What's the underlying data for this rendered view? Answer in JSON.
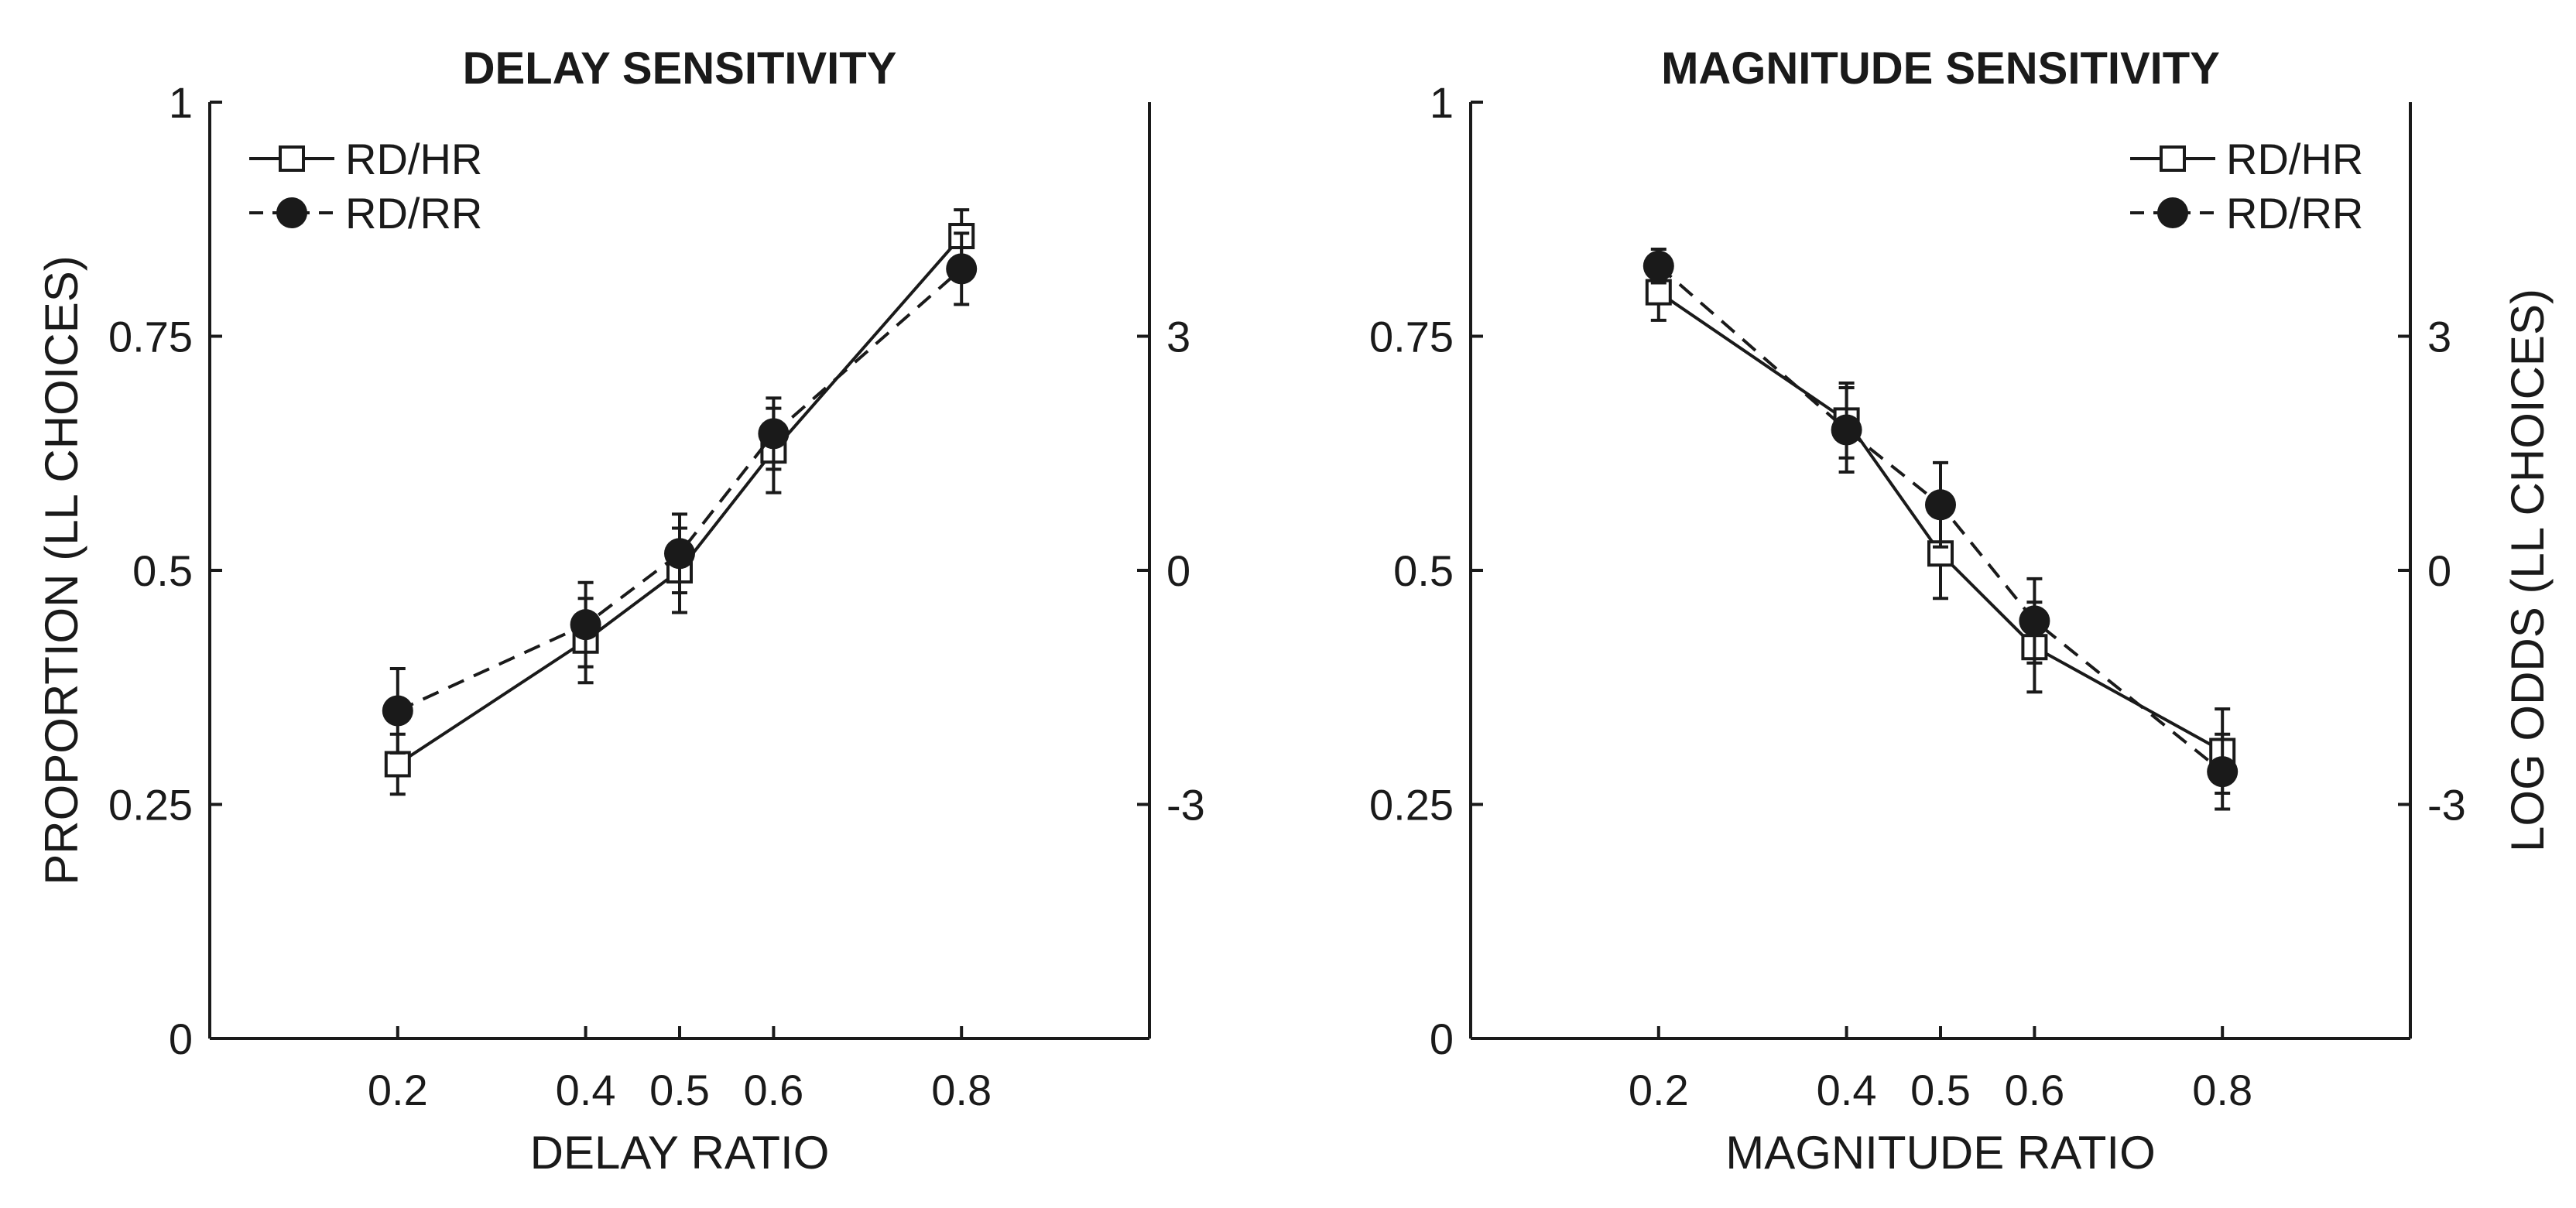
{
  "chart_data": [
    {
      "type": "line",
      "title": "DELAY SENSITIVITY",
      "xlabel": "DELAY RATIO",
      "ylabel": "PROPORTION (LL CHOICES)",
      "y2label": "",
      "xlim": [
        0,
        1
      ],
      "ylim": [
        0,
        1
      ],
      "y2lim": [
        -6,
        6
      ],
      "xticks": [
        0.2,
        0.4,
        0.5,
        0.6,
        0.8
      ],
      "xtick_labels": [
        "0.2",
        "0.4",
        "0.5",
        "0.6",
        "0.8"
      ],
      "yticks": [
        0,
        0.25,
        0.5,
        0.75,
        1
      ],
      "ytick_labels": [
        "0",
        "0.25",
        "0.5",
        "0.75",
        "1"
      ],
      "y2ticks": [
        -3,
        0,
        3
      ],
      "y2tick_labels": [
        "-3",
        "0",
        "3"
      ],
      "legend_position": "top-left",
      "series": [
        {
          "name": "RD/HR",
          "marker": "open-square",
          "line": "solid",
          "x": [
            0.2,
            0.4,
            0.5,
            0.6,
            0.8
          ],
          "values": [
            0.293,
            0.425,
            0.5,
            0.628,
            0.857
          ],
          "error": [
            0.032,
            0.045,
            0.045,
            0.045,
            0.028
          ]
        },
        {
          "name": "RD/RR",
          "marker": "filled-circle",
          "line": "dashed",
          "x": [
            0.2,
            0.4,
            0.5,
            0.6,
            0.8
          ],
          "values": [
            0.35,
            0.442,
            0.518,
            0.646,
            0.822
          ],
          "error": [
            0.045,
            0.045,
            0.042,
            0.038,
            0.038
          ]
        }
      ]
    },
    {
      "type": "line",
      "title": "MAGNITUDE SENSITIVITY",
      "xlabel": "MAGNITUDE RATIO",
      "ylabel": "",
      "y2label": "LOG ODDS (LL CHOICES)",
      "xlim": [
        0,
        1
      ],
      "ylim": [
        0,
        1
      ],
      "y2lim": [
        -6,
        6
      ],
      "xticks": [
        0.2,
        0.4,
        0.5,
        0.6,
        0.8
      ],
      "xtick_labels": [
        "0.2",
        "0.4",
        "0.5",
        "0.6",
        "0.8"
      ],
      "yticks": [
        0,
        0.25,
        0.5,
        0.75,
        1
      ],
      "ytick_labels": [
        "0",
        "0.25",
        "0.5",
        "0.75",
        "1"
      ],
      "y2ticks": [
        -3,
        0,
        3
      ],
      "y2tick_labels": [
        "-3",
        "0",
        "3"
      ],
      "legend_position": "top-right",
      "series": [
        {
          "name": "RD/HR",
          "marker": "open-square",
          "line": "solid",
          "x": [
            0.2,
            0.4,
            0.5,
            0.6,
            0.8
          ],
          "values": [
            0.797,
            0.66,
            0.518,
            0.418,
            0.307
          ],
          "error": [
            0.03,
            0.04,
            0.048,
            0.048,
            0.045
          ]
        },
        {
          "name": "RD/RR",
          "marker": "filled-circle",
          "line": "dashed",
          "x": [
            0.2,
            0.4,
            0.5,
            0.6,
            0.8
          ],
          "values": [
            0.825,
            0.65,
            0.57,
            0.446,
            0.285
          ],
          "error": [
            0.018,
            0.045,
            0.045,
            0.045,
            0.04
          ]
        }
      ]
    }
  ]
}
